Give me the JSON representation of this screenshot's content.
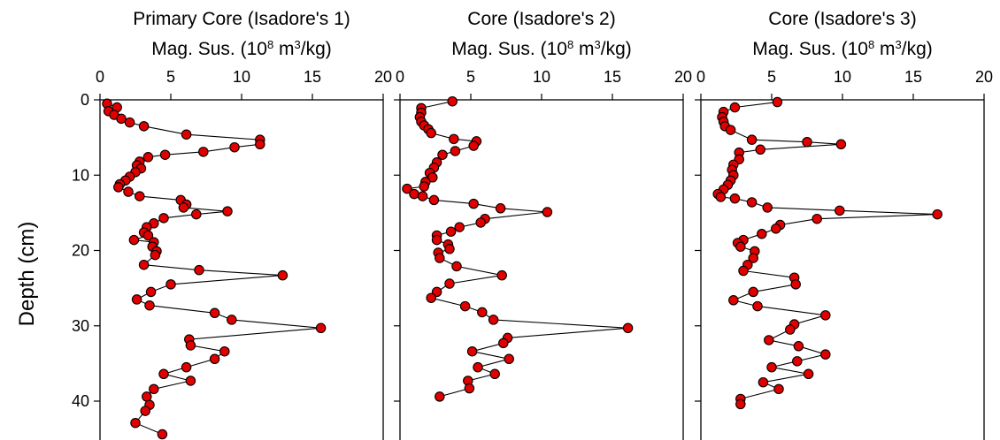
{
  "y_axis_label": "Depth (cm)",
  "marker_fill": "#e00000",
  "marker_stroke": "#000000",
  "line_color": "#000000",
  "chart_data": [
    {
      "type": "line",
      "title": "Primary Core (Isadore's 1)",
      "subtitle_parts": [
        "Mag. Sus. (10",
        "8",
        " m",
        "3",
        "/kg)"
      ],
      "xlim": [
        0,
        20
      ],
      "ylim": [
        45,
        0
      ],
      "x_ticks": [
        "0",
        "5",
        "10",
        "15",
        "20"
      ],
      "y_ticks": [
        "0",
        "10",
        "20",
        "30",
        "40"
      ],
      "points": [
        [
          0.5,
          0.5
        ],
        [
          1.2,
          1.0
        ],
        [
          0.6,
          1.5
        ],
        [
          1.0,
          2.0
        ],
        [
          1.5,
          2.5
        ],
        [
          2.1,
          3.0
        ],
        [
          3.1,
          3.5
        ],
        [
          6.1,
          4.6
        ],
        [
          11.3,
          5.3
        ],
        [
          11.3,
          5.9
        ],
        [
          9.5,
          6.3
        ],
        [
          7.3,
          6.9
        ],
        [
          4.6,
          7.3
        ],
        [
          3.4,
          7.6
        ],
        [
          2.8,
          8.2
        ],
        [
          2.6,
          8.7
        ],
        [
          2.9,
          9.1
        ],
        [
          2.5,
          9.6
        ],
        [
          2.1,
          10.2
        ],
        [
          1.8,
          10.7
        ],
        [
          1.4,
          11.2
        ],
        [
          1.3,
          11.6
        ],
        [
          2.0,
          12.2
        ],
        [
          2.8,
          12.8
        ],
        [
          5.7,
          13.3
        ],
        [
          6.1,
          13.9
        ],
        [
          5.9,
          14.3
        ],
        [
          9.0,
          14.8
        ],
        [
          6.8,
          15.2
        ],
        [
          4.5,
          15.7
        ],
        [
          3.8,
          16.4
        ],
        [
          3.3,
          16.9
        ],
        [
          3.1,
          17.6
        ],
        [
          3.4,
          18.0
        ],
        [
          2.4,
          18.6
        ],
        [
          3.8,
          18.9
        ],
        [
          3.7,
          19.5
        ],
        [
          4.0,
          20.1
        ],
        [
          3.9,
          20.6
        ],
        [
          3.1,
          21.9
        ],
        [
          7.0,
          22.6
        ],
        [
          12.9,
          23.3
        ],
        [
          5.0,
          24.5
        ],
        [
          3.6,
          25.5
        ],
        [
          2.6,
          26.5
        ],
        [
          3.5,
          27.3
        ],
        [
          8.1,
          28.3
        ],
        [
          9.3,
          29.2
        ],
        [
          15.6,
          30.3
        ],
        [
          6.3,
          31.8
        ],
        [
          6.4,
          32.6
        ],
        [
          8.8,
          33.4
        ],
        [
          8.1,
          34.4
        ],
        [
          6.1,
          35.5
        ],
        [
          4.5,
          36.4
        ],
        [
          6.4,
          37.3
        ],
        [
          3.8,
          38.4
        ],
        [
          3.3,
          39.4
        ],
        [
          3.5,
          40.5
        ],
        [
          3.2,
          41.3
        ],
        [
          2.5,
          42.9
        ],
        [
          4.4,
          44.4
        ]
      ]
    },
    {
      "type": "line",
      "title": "Core (Isadore's 2)",
      "subtitle_parts": [
        "Mag. Sus. (10",
        "8",
        " m",
        "3",
        "/kg)"
      ],
      "xlim": [
        0,
        20
      ],
      "ylim": [
        45,
        0
      ],
      "x_ticks": [
        "0",
        "5",
        "10",
        "15",
        "20"
      ],
      "y_ticks": [],
      "points": [
        [
          3.7,
          0.2
        ],
        [
          1.5,
          1.1
        ],
        [
          1.5,
          1.7
        ],
        [
          1.4,
          2.3
        ],
        [
          1.5,
          2.9
        ],
        [
          1.7,
          3.4
        ],
        [
          2.0,
          3.9
        ],
        [
          2.2,
          4.4
        ],
        [
          3.8,
          5.2
        ],
        [
          5.4,
          5.5
        ],
        [
          5.2,
          6.1
        ],
        [
          3.9,
          6.8
        ],
        [
          3.0,
          7.3
        ],
        [
          2.6,
          8.3
        ],
        [
          2.4,
          9.0
        ],
        [
          2.1,
          9.7
        ],
        [
          2.3,
          10.3
        ],
        [
          1.8,
          10.9
        ],
        [
          1.7,
          11.5
        ],
        [
          0.5,
          11.8
        ],
        [
          1.0,
          12.5
        ],
        [
          1.6,
          12.8
        ],
        [
          2.4,
          13.3
        ],
        [
          5.2,
          13.8
        ],
        [
          7.1,
          14.4
        ],
        [
          10.4,
          14.9
        ],
        [
          6.0,
          15.8
        ],
        [
          5.7,
          16.3
        ],
        [
          4.2,
          16.9
        ],
        [
          3.6,
          17.5
        ],
        [
          2.6,
          18.0
        ],
        [
          2.6,
          18.6
        ],
        [
          3.4,
          19.2
        ],
        [
          3.5,
          19.8
        ],
        [
          2.7,
          20.3
        ],
        [
          2.8,
          21.0
        ],
        [
          4.0,
          22.1
        ],
        [
          7.2,
          23.3
        ],
        [
          3.5,
          24.4
        ],
        [
          2.6,
          25.5
        ],
        [
          2.2,
          26.3
        ],
        [
          4.6,
          27.4
        ],
        [
          5.8,
          28.2
        ],
        [
          6.6,
          29.2
        ],
        [
          16.1,
          30.3
        ],
        [
          7.6,
          31.6
        ],
        [
          7.3,
          32.3
        ],
        [
          5.1,
          33.4
        ],
        [
          7.7,
          34.4
        ],
        [
          5.5,
          35.5
        ],
        [
          6.7,
          36.4
        ],
        [
          4.8,
          37.3
        ],
        [
          4.9,
          38.3
        ],
        [
          2.8,
          39.4
        ]
      ]
    },
    {
      "type": "line",
      "title": "Core (Isadore's 3)",
      "subtitle_parts": [
        "Mag. Sus. (10",
        "8",
        " m",
        "3",
        "/kg)"
      ],
      "xlim": [
        0,
        20
      ],
      "ylim": [
        45,
        0
      ],
      "x_ticks": [
        "0",
        "5",
        "10",
        "15",
        "20"
      ],
      "y_ticks": [],
      "points": [
        [
          5.4,
          0.3
        ],
        [
          2.4,
          1.0
        ],
        [
          1.6,
          1.6
        ],
        [
          1.5,
          2.3
        ],
        [
          1.6,
          2.9
        ],
        [
          1.7,
          3.5
        ],
        [
          2.1,
          4.0
        ],
        [
          3.6,
          5.3
        ],
        [
          7.5,
          5.6
        ],
        [
          9.9,
          5.9
        ],
        [
          4.2,
          6.6
        ],
        [
          2.7,
          7.0
        ],
        [
          2.7,
          7.9
        ],
        [
          2.3,
          8.6
        ],
        [
          2.2,
          9.3
        ],
        [
          2.3,
          10.0
        ],
        [
          2.1,
          10.7
        ],
        [
          1.9,
          11.3
        ],
        [
          1.6,
          11.9
        ],
        [
          1.2,
          12.5
        ],
        [
          1.4,
          12.9
        ],
        [
          2.4,
          13.1
        ],
        [
          3.6,
          13.6
        ],
        [
          4.7,
          14.3
        ],
        [
          9.8,
          14.7
        ],
        [
          16.7,
          15.2
        ],
        [
          8.2,
          15.8
        ],
        [
          5.6,
          16.6
        ],
        [
          5.3,
          17.1
        ],
        [
          4.3,
          17.8
        ],
        [
          3.0,
          18.6
        ],
        [
          2.6,
          19.0
        ],
        [
          2.8,
          19.5
        ],
        [
          3.8,
          20.1
        ],
        [
          3.7,
          21.0
        ],
        [
          3.3,
          21.9
        ],
        [
          3.0,
          22.7
        ],
        [
          6.6,
          23.6
        ],
        [
          6.7,
          24.5
        ],
        [
          3.7,
          25.5
        ],
        [
          2.3,
          26.6
        ],
        [
          4.0,
          27.4
        ],
        [
          8.8,
          28.6
        ],
        [
          6.6,
          29.8
        ],
        [
          6.3,
          30.5
        ],
        [
          4.8,
          31.9
        ],
        [
          6.9,
          32.7
        ],
        [
          8.8,
          33.8
        ],
        [
          6.8,
          34.7
        ],
        [
          5.0,
          35.5
        ],
        [
          7.6,
          36.4
        ],
        [
          4.4,
          37.5
        ],
        [
          5.5,
          38.4
        ],
        [
          2.8,
          39.7
        ],
        [
          2.8,
          40.4
        ]
      ]
    }
  ]
}
